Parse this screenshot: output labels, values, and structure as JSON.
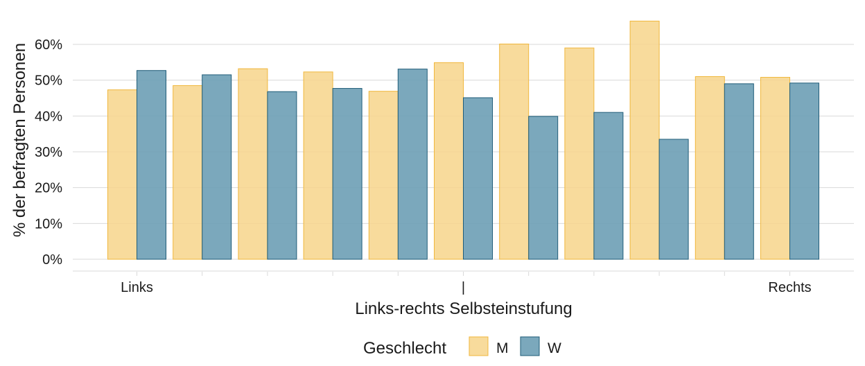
{
  "chart_data": {
    "type": "bar",
    "xlabel": "Links-rechts Selbsteinstufung",
    "ylabel": "% der befragten Personen",
    "ylim": [
      0,
      0.66
    ],
    "yticks": [
      0,
      0.1,
      0.2,
      0.3,
      0.4,
      0.5,
      0.6
    ],
    "ytick_labels": [
      "0%",
      "10%",
      "20%",
      "30%",
      "40%",
      "50%",
      "60%"
    ],
    "categories": [
      "0",
      "1",
      "2",
      "3",
      "4",
      "5",
      "6",
      "7",
      "8",
      "9",
      "10"
    ],
    "xtick_labels": [
      "Links",
      "",
      "",
      "",
      "",
      "|",
      "",
      "",
      "",
      "",
      "Rechts"
    ],
    "series": [
      {
        "name": "M",
        "color": "#f7d58b",
        "edge": "#f0b73c",
        "values": [
          0.473,
          0.485,
          0.532,
          0.523,
          0.469,
          0.549,
          0.601,
          0.59,
          0.665,
          0.51,
          0.508
        ]
      },
      {
        "name": "W",
        "color": "#6d9fb5",
        "edge": "#1f5c78",
        "values": [
          0.527,
          0.515,
          0.468,
          0.477,
          0.531,
          0.451,
          0.399,
          0.41,
          0.335,
          0.49,
          0.492
        ]
      }
    ],
    "grid": true,
    "legend": {
      "title": "Geschlecht",
      "position": "bottom"
    }
  }
}
